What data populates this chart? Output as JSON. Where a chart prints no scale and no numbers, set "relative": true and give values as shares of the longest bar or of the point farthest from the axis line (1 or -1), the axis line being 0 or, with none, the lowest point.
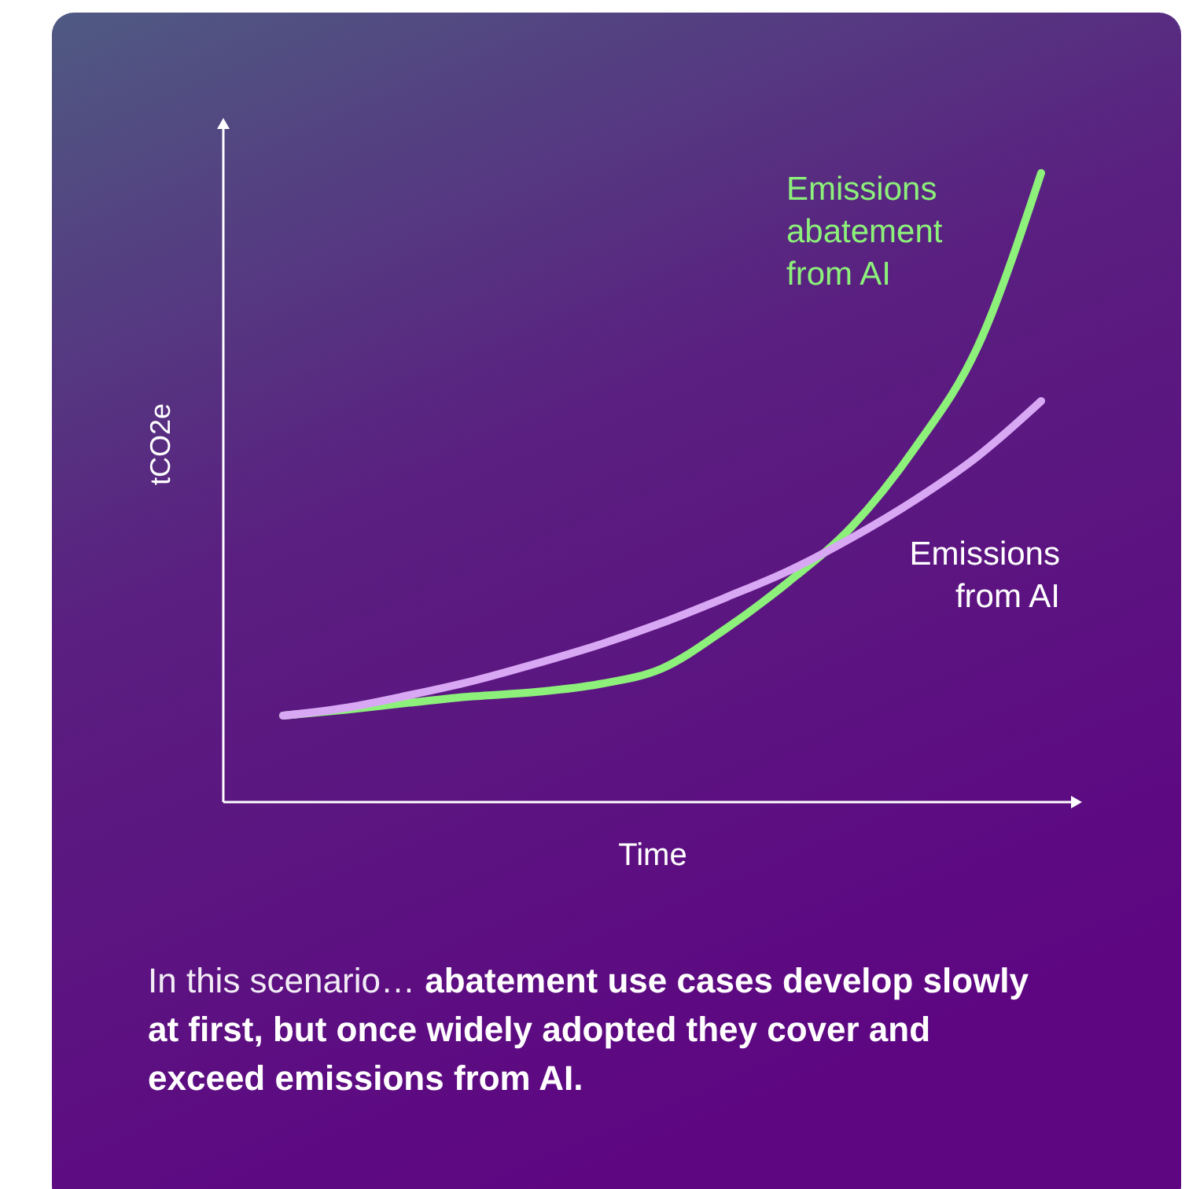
{
  "chart_data": {
    "type": "line",
    "relative": true,
    "ylabel": "tCO2e",
    "xlabel": "Time",
    "categories": [
      null,
      null,
      null,
      null,
      null,
      null,
      null,
      null,
      null,
      null,
      null,
      null,
      null
    ],
    "series": [
      {
        "name": "Emissions abatement from AI",
        "color": "#8cf07a",
        "values": [
          0.1375,
          0.147,
          0.158,
          0.168,
          0.175,
          0.1875,
          0.2125,
          0.275,
          0.35,
          0.4375,
          0.5625,
          0.725,
          1
        ]
      },
      {
        "name": "Emissions from AI",
        "color": "#d9a8f5",
        "values": [
          0.1375,
          0.15,
          0.17,
          0.1925,
          0.22,
          0.25,
          0.285,
          0.325,
          0.3675,
          0.42,
          0.48,
          0.55,
          0.6375
        ]
      }
    ],
    "annotations": [
      "In this scenario…",
      "abatement use cases develop slowly at first, but once widely adopted they cover and exceed emissions from AI."
    ]
  }
}
